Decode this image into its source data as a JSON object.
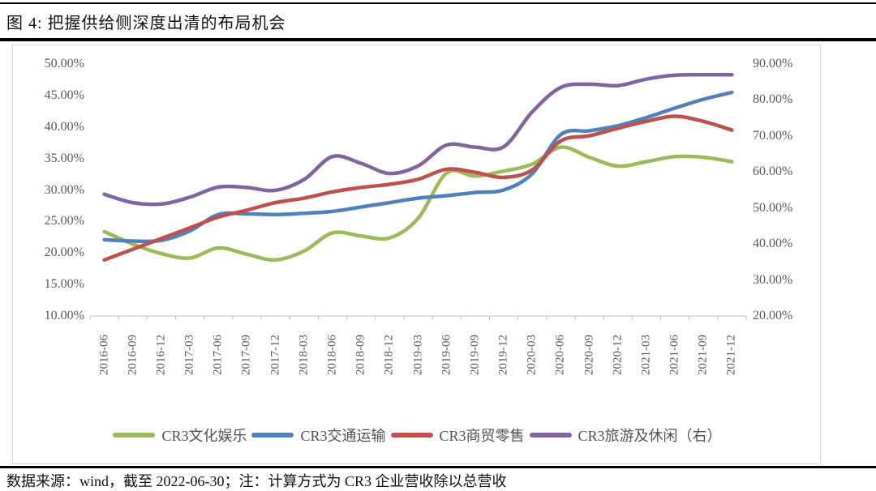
{
  "page": {
    "title": "图 4: 把握供给侧深度出清的布局机会",
    "footnote": "数据来源：wind，截至 2022-06-30；注：计算方式为 CR3 企业营收除以总营收"
  },
  "chart_data": {
    "type": "line",
    "smooth": true,
    "grid": false,
    "legend_position": "bottom",
    "categories": [
      "2016-06",
      "2016-09",
      "2016-12",
      "2017-03",
      "2017-06",
      "2017-09",
      "2017-12",
      "2018-03",
      "2018-06",
      "2018-09",
      "2018-12",
      "2019-03",
      "2019-06",
      "2019-09",
      "2019-12",
      "2020-03",
      "2020-06",
      "2020-09",
      "2020-12",
      "2021-03",
      "2021-06",
      "2021-09",
      "2021-12"
    ],
    "left_axis": {
      "min": 10,
      "max": 50,
      "step": 5,
      "tick_values": [
        50,
        45,
        40,
        35,
        30,
        25,
        20,
        15,
        10
      ],
      "tick_labels": [
        "50.00%",
        "45.00%",
        "40.00%",
        "35.00%",
        "30.00%",
        "25.00%",
        "20.00%",
        "15.00%",
        "10.00%"
      ]
    },
    "right_axis": {
      "min": 20,
      "max": 90,
      "step": 10,
      "tick_values": [
        90,
        80,
        70,
        60,
        50,
        40,
        30,
        20
      ],
      "tick_labels": [
        "90.00%",
        "80.00%",
        "70.00%",
        "60.00%",
        "50.00%",
        "40.00%",
        "30.00%",
        "20.00%"
      ]
    },
    "series": [
      {
        "name": "CR3文化娱乐",
        "color": "#9BBB59",
        "axis": "left",
        "values": [
          23.4,
          21.4,
          19.9,
          19.2,
          20.8,
          19.8,
          18.9,
          20.3,
          23.2,
          22.7,
          22.4,
          25.5,
          32.7,
          32.2,
          33.0,
          34.1,
          36.8,
          35.2,
          33.8,
          34.5,
          35.3,
          35.2,
          34.5
        ]
      },
      {
        "name": "CR3交通运输",
        "color": "#4F81BD",
        "axis": "left",
        "values": [
          22.1,
          21.9,
          22.0,
          23.5,
          26.1,
          26.2,
          26.1,
          26.3,
          26.6,
          27.3,
          28.0,
          28.7,
          29.1,
          29.6,
          30.0,
          32.6,
          38.8,
          39.4,
          40.2,
          41.5,
          43.0,
          44.4,
          45.5
        ]
      },
      {
        "name": "CR3商贸零售",
        "color": "#C0504D",
        "axis": "left",
        "values": [
          18.9,
          20.6,
          22.3,
          24.0,
          25.7,
          26.8,
          28.0,
          28.7,
          29.7,
          30.4,
          30.9,
          31.7,
          33.3,
          32.8,
          32.0,
          33.2,
          37.8,
          38.6,
          39.8,
          40.9,
          41.7,
          40.9,
          39.5
        ]
      },
      {
        "name": "CR3旅游及休闲（右）",
        "color": "#8064A2",
        "axis": "right",
        "values": [
          53.8,
          51.5,
          51.1,
          53.0,
          55.8,
          55.7,
          54.9,
          57.9,
          64.3,
          62.4,
          59.6,
          61.7,
          67.5,
          66.9,
          67.0,
          76.7,
          83.5,
          84.4,
          84.0,
          85.8,
          86.9,
          87.0,
          87.0
        ]
      }
    ],
    "axis_color": "#BFBFBF",
    "tick_text_color": "#595959"
  }
}
